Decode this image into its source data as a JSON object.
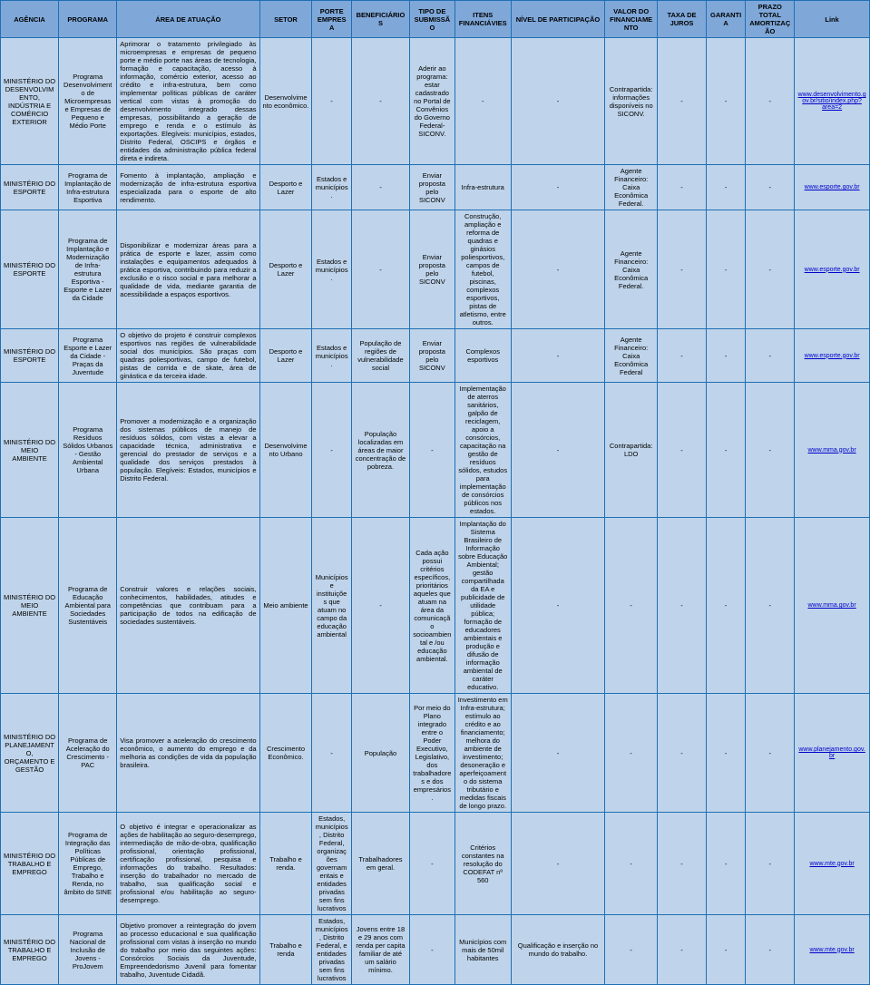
{
  "headers": {
    "agencia": "AGÊNCIA",
    "programa": "PROGRAMA",
    "area": "ÁREA DE ATUAÇÃO",
    "setor": "SETOR",
    "porte": "PORTE EMPRESA",
    "benef": "BENEFICIÁRIOS",
    "tipo": "TIPO DE SUBMISSÃO",
    "itens": "ITENS FINANCIÁVIES",
    "nivel": "NÍVEL DE PARTICIPAÇÃO",
    "valor": "VALOR DO FINANCIAMENTO",
    "taxa": "TAXA DE JUROS",
    "garantia": "GARANTIA",
    "prazo": "PRAZO TOTAL AMORTIZAÇÃO",
    "link": "Link"
  },
  "rows": [
    {
      "agencia": "MINISTÉRIO DO DESENVOLVIMENTO, INDÚSTRIA E COMÉRCIO EXTERIOR",
      "programa": "Programa Desenvolvimento de Microempresas e Empresas de Pequeno e Médio Porte",
      "area": "Aprimorar o tratamento privilegiado às microempresas e empresas de pequeno porte e médio porte nas áreas de tecnologia, formação e capacitação, acesso à informação, comércio exterior, acesso ao crédito e infra-estrutura, bem como implementar políticas públicas de caráter vertical com vistas à promoção do desenvolvimento integrado dessas empresas, possibilitando a geração de emprego e renda e o estímulo às exportações. Elegíveis: municípios, estados, Distrito Federal, OSCIPS e órgãos e entidades da administração pública federal direta e indireta.",
      "setor": "Desenvolvimento econômico.",
      "porte": "-",
      "benef": "-",
      "tipo": "Aderir ao programa: estar cadastrado no Portal de Convênios do Governo Federal-SICONV.",
      "itens": "-",
      "nivel": "-",
      "valor": "Contrapartida: informações disponíveis no SICONV.",
      "taxa": "-",
      "garantia": "-",
      "prazo": "-",
      "link": "www.desenvolvimento.gov.br/sitio/index.php?area=2"
    },
    {
      "agencia": "MINISTÉRIO DO ESPORTE",
      "programa": "Programa de Implantação de Infra-estrutura Esportiva",
      "area": "Fomento à implantação, ampliação e modernização de infra-estrutura esportiva especializada para o esporte de alto rendimento.",
      "setor": "Desporto e Lazer",
      "porte": "Estados e municípios.",
      "benef": "-",
      "tipo": "Enviar proposta pelo SICONV",
      "itens": "Infra-estrutura",
      "nivel": "-",
      "valor": "Agente Financeiro: Caixa Econômica Federal.",
      "taxa": "-",
      "garantia": "-",
      "prazo": "-",
      "link": "www.esporte.gov.br"
    },
    {
      "agencia": "MINISTÉRIO DO ESPORTE",
      "programa": "Programa de Implantação e Modernização de Infra-estrutura Esportiva - Esporte e Lazer da Cidade",
      "area": "Disponibilizar e modernizar áreas para a prática de esporte e lazer, assim como instalações e equipamentos adequados à prática esportiva, contribuindo para reduzir a exclusão e o risco social e para melhorar a qualidade de vida, mediante garantia de acessibilidade a espaços esportivos.",
      "setor": "Desporto e Lazer",
      "porte": "Estados e municípios.",
      "benef": "-",
      "tipo": "Enviar proposta pelo SICONV",
      "itens": "Construção, ampliação e reforma de quadras e ginásios poliesportivos, campos de futebol, piscinas, complexos esportivos, pistas de atletismo, entre outros.",
      "nivel": "-",
      "valor": "Agente Financeiro: Caixa Econômica Federal.",
      "taxa": "-",
      "garantia": "-",
      "prazo": "-",
      "link": "www.esporte.gov.br"
    },
    {
      "agencia": "MINISTÉRIO DO ESPORTE",
      "programa": "Programa Esporte e Lazer da Cidade - Praças da Juventude",
      "area": "O objetivo do projeto é construir complexos esportivos nas regiões de vulnerabilidade social dos municípios. São praças com quadras poliesportivas, campo de futebol, pistas de corrida e de skate, área de ginástica e da terceira idade.",
      "setor": "Desporto e Lazer",
      "porte": "Estados e municípios.",
      "benef": "População de regiões de vulnerabilidade social",
      "tipo": "Enviar proposta pelo SICONV",
      "itens": "Complexos esportivos",
      "nivel": "-",
      "valor": "Agente Financeiro: Caixa Econômica Federal",
      "taxa": "-",
      "garantia": "-",
      "prazo": "-",
      "link": "www.esporte.gov.br"
    },
    {
      "agencia": "MINISTÉRIO DO MEIO AMBIENTE",
      "programa": "Programa Resíduos Sólidos Urbanos - Gestão Ambiental Urbana",
      "area": "Promover a modernização e a organização dos sistemas públicos de manejo de resíduos sólidos, com vistas a elevar a capacidade técnica, administrativa e gerencial do prestador de serviços e a qualidade dos serviços prestados à população. Elegíveis: Estados, municípios e Distrito Federal.",
      "setor": "Desenvolvimento Urbano",
      "porte": "-",
      "benef": "População localizadas em áreas de maior concentração de pobreza.",
      "tipo": "-",
      "itens": "Implementação de aterros sanitários, galpão de reciclagem, apoio a consórcios, capacitação na gestão de resíduos sólidos, estudos para implementação de consórcios públicos nos estados.",
      "nivel": "-",
      "valor": "Contrapartida: LDO",
      "taxa": "-",
      "garantia": "-",
      "prazo": "-",
      "link": "www.mma.gov.br"
    },
    {
      "agencia": "MINISTÉRIO DO MEIO AMBIENTE",
      "programa": "Programa de Educação Ambiental para Sociedades Sustentáveis",
      "area": "Construir valores e relações sociais, conhecimentos, habilidades, atitudes e competências que contribuam para a participação de todos na edificação de sociedades sustentáveis.",
      "setor": "Meio ambiente",
      "porte": "Municípios e instituições que atuam no campo da educação ambiental",
      "benef": "-",
      "tipo": "Cada ação possui critérios específicos, prioritários aqueles que atuam na área da comunicação socioambiental e /ou educação ambiental.",
      "itens": "Implantação do Sistema Brasileiro de Informação sobre Educação Ambiental; gestão compartilhada da EA e publicidade de utilidade pública; formação de educadores ambientais e produção e difusão de informação ambiental de caráter educativo.",
      "nivel": "-",
      "valor": "-",
      "taxa": "-",
      "garantia": "-",
      "prazo": "-",
      "link": "www.mma.gov.br"
    },
    {
      "agencia": "MINISTÉRIO DO PLANEJAMENTO, ORÇAMENTO E GESTÃO",
      "programa": "Programa de Aceleração do Crescimento - PAC",
      "area": "Visa promover a aceleração do crescimento econômico, o aumento do emprego e da melhoria as condições de vida da população brasileira.",
      "setor": "Crescimento Econômico.",
      "porte": "-",
      "benef": "População",
      "tipo": "Por meio do Plano integrado entre o Poder Executivo, Legislativo, dos trabalhadores e dos empresários.",
      "itens": "Investimento em Infra-estrutura; estímulo ao crédito e ao financiamento; melhora do ambiente de investimento; desoneração e aperfeiçoamento do sistema tributário e medidas fiscais de longo prazo.",
      "nivel": "-",
      "valor": "-",
      "taxa": "-",
      "garantia": "-",
      "prazo": "-",
      "link": "www.planejamento.gov.br"
    },
    {
      "agencia": "MINISTÉRIO DO TRABALHO E EMPREGO",
      "programa": "Programa de Integração das Políticas Públicas de Emprego, Trabalho e Renda, no âmbito do SINE",
      "area": "O objetivo é integrar e operacionalizar as ações de habilitação ao seguro-desemprego, intermediação de mão-de-obra, qualificação profissional, orientação profissional, certificação profissional, pesquisa e informações do trabalho. Resultados: inserção do trabalhador no mercado de trabalho, sua qualificação social e profissional e/ou habilitação ao seguro-desemprego.",
      "setor": "Trabalho e renda.",
      "porte": "Estados, municípios, Distrito Federal, organizações governamentais e entidades privadas sem fins lucrativos",
      "benef": "Trabalhadores em geral.",
      "tipo": "-",
      "itens": "Critérios constantes na resolução do CODEFAT nº 560",
      "nivel": "-",
      "valor": "-",
      "taxa": "-",
      "garantia": "-",
      "prazo": "-",
      "link": "www.mte.gov.br"
    },
    {
      "agencia": "MINISTÉRIO DO TRABALHO E EMPREGO",
      "programa": "Programa Nacional de Inclusão de Jovens - ProJovem",
      "area": "Objetivo promover a reintegração do jovem ao processo educacional e sua qualificação profissional com vistas à inserção no mundo do trabalho por meio das seguintes ações: Consórcios Sociais da Juventude, Empreendedorismo Juvenil para fomentar trabalho, Juventude Cidadã.",
      "setor": "Trabalho e renda",
      "porte": "Estados, municípios, Distrito Federal, e entidades privadas sem fins lucrativos",
      "benef": "Jovens entre 18 e 29 anos com renda per capita familiar de até um salário mínimo.",
      "tipo": "-",
      "itens": "Municípios com mais de 50mil habitantes",
      "nivel": "Qualificação e inserção no mundo do trabalho.",
      "valor": "-",
      "taxa": "-",
      "garantia": "-",
      "prazo": "-",
      "link": "www.mte.gov.br"
    }
  ]
}
